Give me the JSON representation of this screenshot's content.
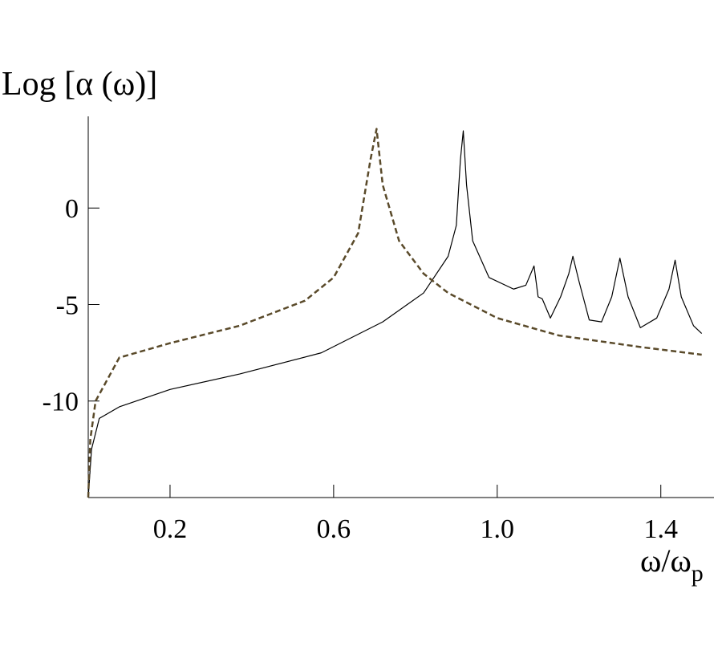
{
  "chart_data": {
    "type": "line",
    "y_label": "Log [α (ω)]",
    "x_label": "ω/ω",
    "x_label_subscript": "p",
    "xlim": [
      0,
      1.53
    ],
    "ylim": [
      -15,
      4.75
    ],
    "xticks": [
      0.2,
      0.6,
      {
        "value": 1.0,
        "label": "1.0"
      },
      1.4
    ],
    "yticks": [
      0,
      -5,
      -10
    ],
    "series": [
      {
        "color": "#000000",
        "dash": false,
        "x": [
          0,
          0.008,
          0.027,
          0.076,
          0.2,
          0.37,
          0.57,
          0.72,
          0.82,
          0.88,
          0.9,
          0.91,
          0.917,
          0.925,
          0.94,
          0.98,
          1.04,
          1.07,
          1.09,
          1.1,
          1.11,
          1.13,
          1.155,
          1.175,
          1.185,
          1.2,
          1.225,
          1.255,
          1.28,
          1.3,
          1.32,
          1.35,
          1.39,
          1.42,
          1.435,
          1.45,
          1.48,
          1.5
        ],
        "values": [
          -15,
          -12.5,
          -10.9,
          -10.3,
          -9.4,
          -8.6,
          -7.5,
          -5.9,
          -4.4,
          -2.5,
          -0.9,
          2.5,
          4.0,
          1.2,
          -1.7,
          -3.6,
          -4.2,
          -4.0,
          -3.0,
          -4.6,
          -4.7,
          -5.7,
          -4.6,
          -3.4,
          -2.5,
          -3.8,
          -5.8,
          -5.9,
          -4.6,
          -2.6,
          -4.6,
          -6.2,
          -5.7,
          -4.2,
          -2.7,
          -4.6,
          -6.1,
          -6.5
        ]
      },
      {
        "color": "#5a4a2a",
        "dash": true,
        "x": [
          0,
          0.005,
          0.018,
          0.076,
          0.2,
          0.37,
          0.53,
          0.6,
          0.66,
          0.69,
          0.705,
          0.72,
          0.76,
          0.82,
          0.88,
          1.0,
          1.15,
          1.35,
          1.5
        ],
        "values": [
          -15,
          -12,
          -10,
          -7.75,
          -7.0,
          -6.1,
          -4.8,
          -3.6,
          -1.3,
          2.5,
          4.1,
          1.2,
          -1.7,
          -3.4,
          -4.4,
          -5.7,
          -6.6,
          -7.2,
          -7.6
        ]
      }
    ]
  }
}
